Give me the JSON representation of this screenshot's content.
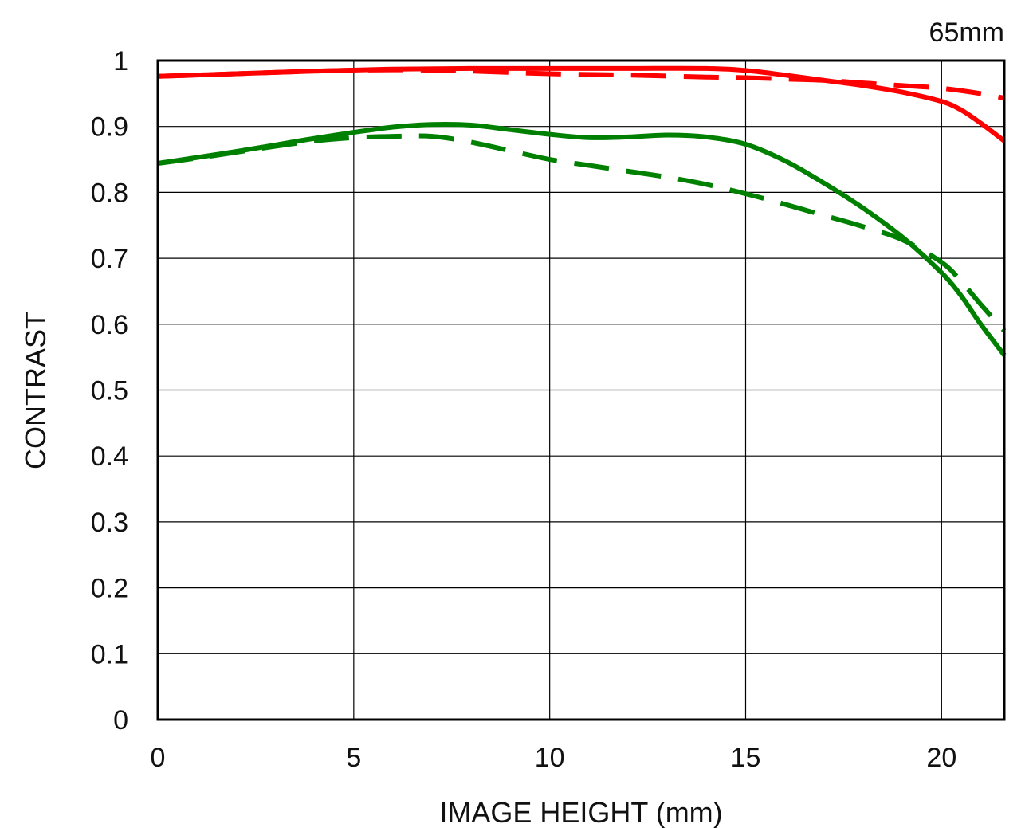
{
  "chart_data": {
    "type": "line",
    "corner_label": "65mm",
    "xlabel": "IMAGE HEIGHT (mm)",
    "ylabel": "CONTRAST",
    "xlim": [
      0,
      21.6
    ],
    "ylim": [
      0,
      1
    ],
    "x_ticks": [
      0,
      5,
      10,
      15,
      20
    ],
    "x_tick_labels": [
      "0",
      "5",
      "10",
      "15",
      "20"
    ],
    "y_ticks": [
      0,
      0.1,
      0.2,
      0.3,
      0.4,
      0.5,
      0.6,
      0.7,
      0.8,
      0.9,
      1
    ],
    "y_tick_labels": [
      "0",
      "0.1",
      "0.2",
      "0.3",
      "0.4",
      "0.5",
      "0.6",
      "0.7",
      "0.8",
      "0.9",
      "1"
    ],
    "grid": true,
    "series": [
      {
        "color": "#ff0000",
        "dashed": false,
        "points": [
          [
            0,
            0.976
          ],
          [
            2,
            0.98
          ],
          [
            4,
            0.984
          ],
          [
            6,
            0.987
          ],
          [
            8,
            0.988
          ],
          [
            10,
            0.988
          ],
          [
            12,
            0.988
          ],
          [
            14,
            0.988
          ],
          [
            15,
            0.985
          ],
          [
            16,
            0.978
          ],
          [
            17,
            0.97
          ],
          [
            18,
            0.962
          ],
          [
            19,
            0.952
          ],
          [
            20,
            0.938
          ],
          [
            20.5,
            0.925
          ],
          [
            21,
            0.905
          ],
          [
            21.6,
            0.878
          ]
        ]
      },
      {
        "color": "#ff0000",
        "dashed": true,
        "points": [
          [
            0,
            0.976
          ],
          [
            2,
            0.98
          ],
          [
            4,
            0.984
          ],
          [
            6,
            0.986
          ],
          [
            8,
            0.984
          ],
          [
            10,
            0.98
          ],
          [
            12,
            0.978
          ],
          [
            14,
            0.975
          ],
          [
            15,
            0.974
          ],
          [
            16,
            0.972
          ],
          [
            17,
            0.97
          ],
          [
            18,
            0.966
          ],
          [
            19,
            0.962
          ],
          [
            20,
            0.958
          ],
          [
            21,
            0.95
          ],
          [
            21.6,
            0.943
          ]
        ]
      },
      {
        "color": "#008000",
        "dashed": false,
        "points": [
          [
            0,
            0.844
          ],
          [
            1,
            0.853
          ],
          [
            2,
            0.862
          ],
          [
            3,
            0.872
          ],
          [
            4,
            0.882
          ],
          [
            5,
            0.891
          ],
          [
            6,
            0.899
          ],
          [
            7,
            0.903
          ],
          [
            8,
            0.902
          ],
          [
            9,
            0.895
          ],
          [
            10,
            0.888
          ],
          [
            11,
            0.883
          ],
          [
            12,
            0.884
          ],
          [
            13,
            0.887
          ],
          [
            14,
            0.884
          ],
          [
            15,
            0.873
          ],
          [
            16,
            0.848
          ],
          [
            17,
            0.814
          ],
          [
            18,
            0.776
          ],
          [
            19,
            0.732
          ],
          [
            20,
            0.678
          ],
          [
            20.5,
            0.643
          ],
          [
            21,
            0.6
          ],
          [
            21.6,
            0.553
          ]
        ]
      },
      {
        "color": "#008000",
        "dashed": true,
        "points": [
          [
            0,
            0.844
          ],
          [
            1,
            0.852
          ],
          [
            2,
            0.861
          ],
          [
            3,
            0.87
          ],
          [
            4,
            0.878
          ],
          [
            5,
            0.883
          ],
          [
            6,
            0.885
          ],
          [
            7,
            0.885
          ],
          [
            8,
            0.876
          ],
          [
            9,
            0.863
          ],
          [
            10,
            0.85
          ],
          [
            11,
            0.841
          ],
          [
            12,
            0.832
          ],
          [
            13,
            0.823
          ],
          [
            14,
            0.812
          ],
          [
            15,
            0.798
          ],
          [
            16,
            0.782
          ],
          [
            17,
            0.765
          ],
          [
            18,
            0.748
          ],
          [
            19,
            0.728
          ],
          [
            20,
            0.694
          ],
          [
            20.5,
            0.665
          ],
          [
            21,
            0.63
          ],
          [
            21.6,
            0.59
          ]
        ]
      }
    ]
  }
}
